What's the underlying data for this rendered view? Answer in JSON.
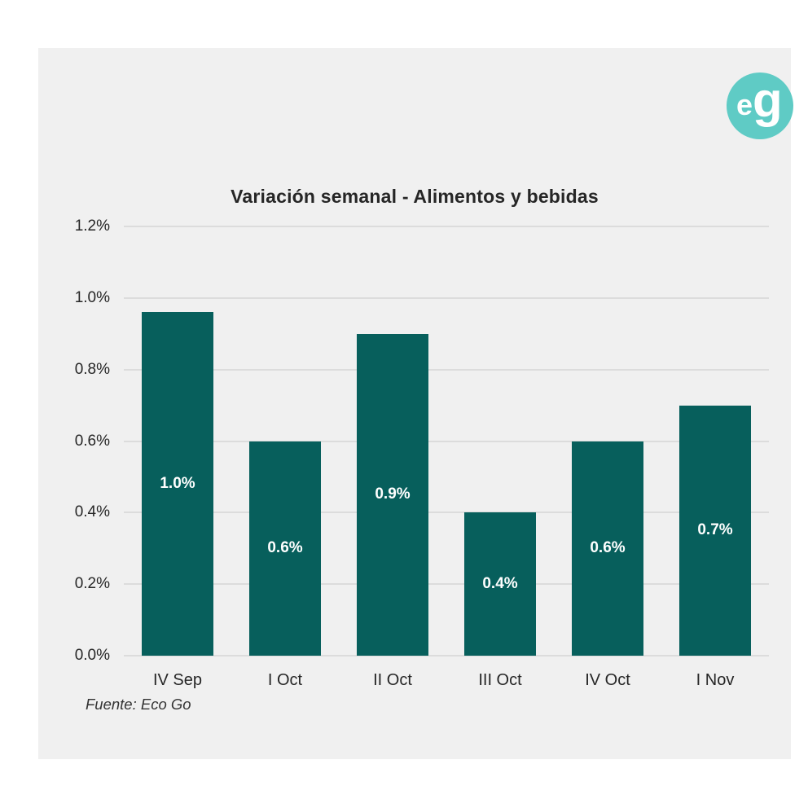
{
  "logo": {
    "letter_e": "e",
    "letter_g": "g",
    "circle_color": "#5fcbc5",
    "text_color": "#ffffff"
  },
  "colors": {
    "page_background": "#ffffff",
    "card_background": "#f0f0f0",
    "gridline": "#dcdcdc",
    "axis_text": "#262626"
  },
  "chart_data": {
    "type": "bar",
    "title": "Variación semanal - Alimentos y bebidas",
    "categories": [
      "IV Sep",
      "I Oct",
      "II Oct",
      "III Oct",
      "IV Oct",
      "I Nov"
    ],
    "values": [
      0.96,
      0.6,
      0.9,
      0.4,
      0.6,
      0.7
    ],
    "bar_labels": [
      "1.0%",
      "0.6%",
      "0.9%",
      "0.4%",
      "0.6%",
      "0.7%"
    ],
    "yticks": [
      "1.2%",
      "1.0%",
      "0.8%",
      "0.6%",
      "0.4%",
      "0.2%",
      "0.0%"
    ],
    "ylim": [
      0,
      1.2
    ],
    "grid": true,
    "legend_position": "none",
    "xlabel": "",
    "ylabel": "",
    "bar_color": "#075f5c",
    "bar_label_color": "#ffffff",
    "source_note": "Fuente: Eco Go"
  }
}
